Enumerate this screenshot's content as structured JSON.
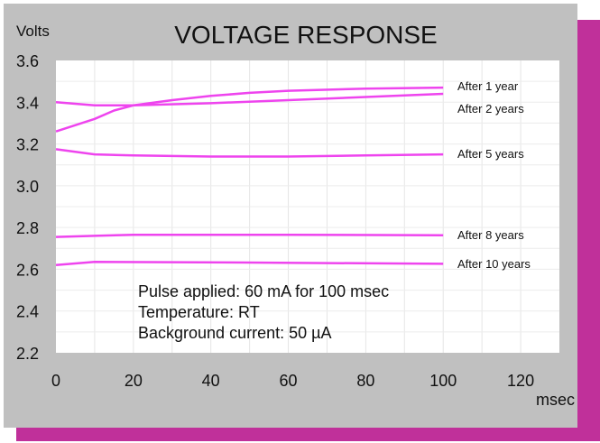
{
  "chart_data": {
    "type": "line",
    "title": "VOLTAGE RESPONSE",
    "xlabel": "msec",
    "ylabel": "Volts",
    "xlim": [
      0,
      130
    ],
    "ylim": [
      2.2,
      3.6
    ],
    "xticks": [
      0,
      20,
      40,
      60,
      80,
      100,
      120
    ],
    "yticks": [
      "2.2",
      "2.4",
      "2.6",
      "2.8",
      "3.0",
      "3.2",
      "3.4",
      "3.6"
    ],
    "grid": true,
    "line_color": "#ee44ee",
    "series": [
      {
        "name": "After 1 year",
        "x": [
          0,
          10,
          15,
          20,
          30,
          40,
          50,
          60,
          80,
          100
        ],
        "y": [
          3.26,
          3.32,
          3.36,
          3.385,
          3.41,
          3.43,
          3.445,
          3.455,
          3.465,
          3.47
        ]
      },
      {
        "name": "After 2 years",
        "x": [
          0,
          10,
          20,
          40,
          60,
          80,
          100
        ],
        "y": [
          3.4,
          3.385,
          3.385,
          3.395,
          3.41,
          3.425,
          3.44
        ]
      },
      {
        "name": "After 5 years",
        "x": [
          0,
          10,
          20,
          40,
          60,
          80,
          100
        ],
        "y": [
          3.175,
          3.15,
          3.145,
          3.14,
          3.14,
          3.145,
          3.15
        ]
      },
      {
        "name": "After 8 years",
        "x": [
          0,
          10,
          20,
          60,
          100
        ],
        "y": [
          2.755,
          2.76,
          2.765,
          2.765,
          2.763
        ]
      },
      {
        "name": "After 10 years",
        "x": [
          0,
          10,
          50,
          100
        ],
        "y": [
          2.62,
          2.635,
          2.632,
          2.626
        ]
      }
    ],
    "annotations": [
      "Pulse applied: 60 mA for 100 msec",
      "Temperature: RT",
      "Background current: 50 µA"
    ]
  }
}
